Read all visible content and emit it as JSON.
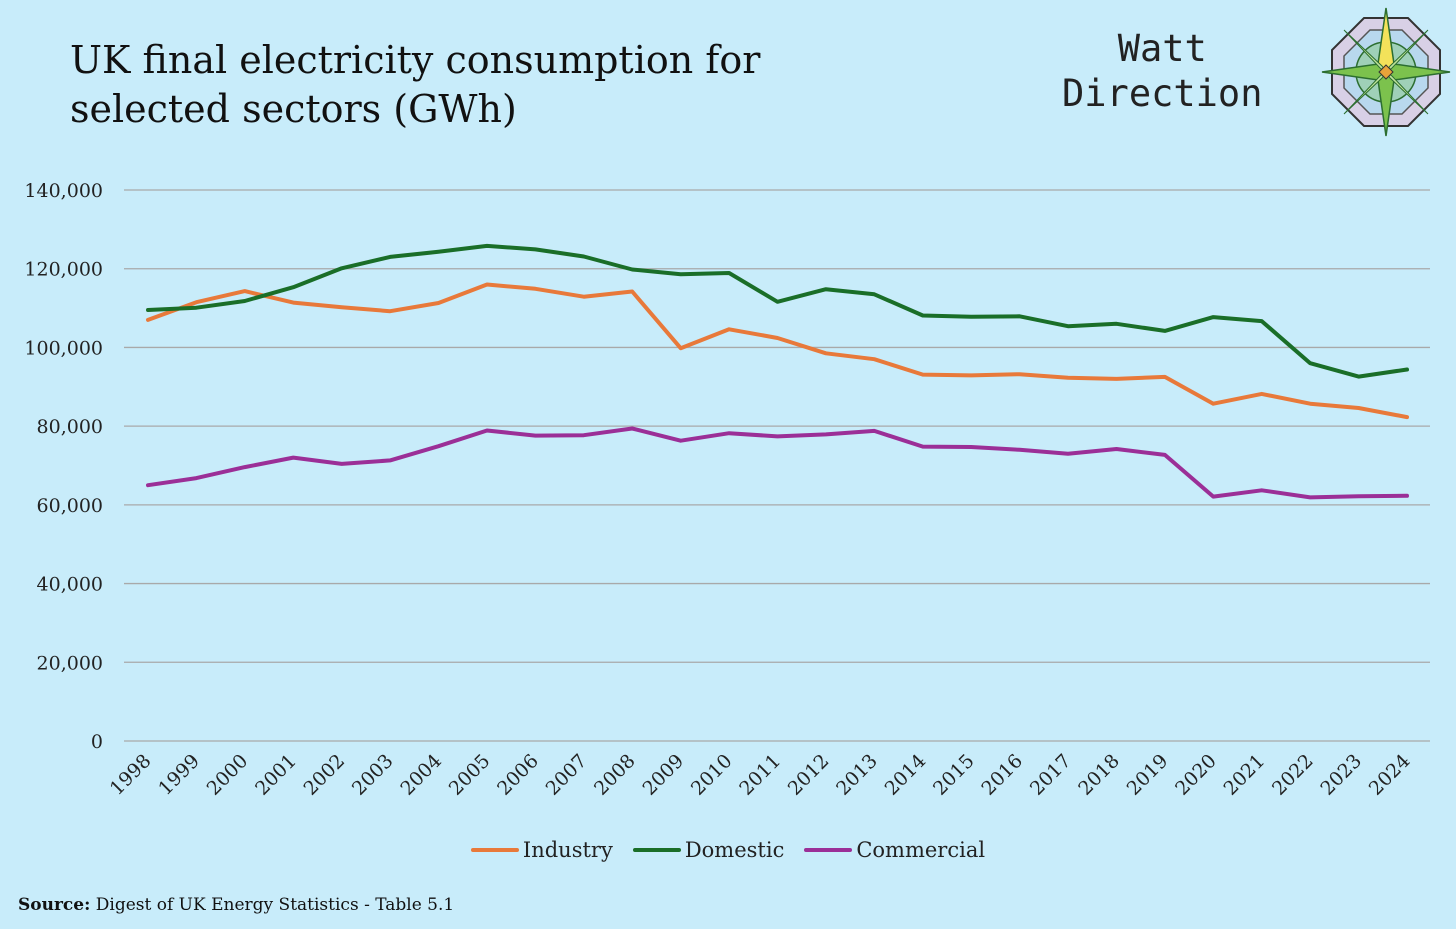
{
  "header": {
    "title_line1": "UK final electricity consumption for",
    "title_line2": "selected sectors (GWh)"
  },
  "brand": {
    "line1": "Watt",
    "line2": "Direction",
    "logo_icon": "compass-rose-icon"
  },
  "source": {
    "label": "Source:",
    "text": "Digest of UK Energy Statistics - Table 5.1"
  },
  "chart_data": {
    "type": "line",
    "title": "UK final electricity consumption for selected sectors (GWh)",
    "xlabel": "",
    "ylabel": "",
    "ylim": [
      0,
      140000
    ],
    "yticks": [
      0,
      20000,
      40000,
      60000,
      80000,
      100000,
      120000,
      140000
    ],
    "ytick_labels": [
      "0",
      "20,000",
      "40,000",
      "60,000",
      "80,000",
      "100,000",
      "120,000",
      "140,000"
    ],
    "grid": true,
    "legend_position": "bottom",
    "categories": [
      "1998",
      "1999",
      "2000",
      "2001",
      "2002",
      "2003",
      "2004",
      "2005",
      "2006",
      "2007",
      "2008",
      "2009",
      "2010",
      "2011",
      "2012",
      "2013",
      "2014",
      "2015",
      "2016",
      "2017",
      "2018",
      "2019",
      "2020",
      "2021",
      "2022",
      "2023",
      "2024"
    ],
    "series": [
      {
        "name": "Industry",
        "color": "#e8793a",
        "values": [
          107000,
          111500,
          114300,
          111400,
          110200,
          109200,
          111300,
          116000,
          114900,
          112900,
          114200,
          99800,
          104600,
          102400,
          98500,
          97000,
          93100,
          92900,
          93200,
          92300,
          92000,
          92500,
          85700,
          88200,
          85700,
          84600,
          82300
        ]
      },
      {
        "name": "Domestic",
        "color": "#1a6e28",
        "values": [
          109500,
          110100,
          111800,
          115300,
          120100,
          123000,
          124300,
          125800,
          124900,
          123100,
          119800,
          118600,
          118900,
          111600,
          114800,
          113500,
          108100,
          107800,
          107900,
          105400,
          106000,
          104200,
          107700,
          106700,
          96000,
          92600,
          94400
        ]
      },
      {
        "name": "Commercial",
        "color": "#9b2f97",
        "values": [
          65000,
          66800,
          69600,
          72000,
          70400,
          71300,
          74900,
          78900,
          77600,
          77700,
          79400,
          76300,
          78200,
          77400,
          77900,
          78800,
          74800,
          74700,
          74000,
          73000,
          74200,
          72700,
          62100,
          63700,
          61900,
          62200,
          62300
        ]
      }
    ]
  }
}
